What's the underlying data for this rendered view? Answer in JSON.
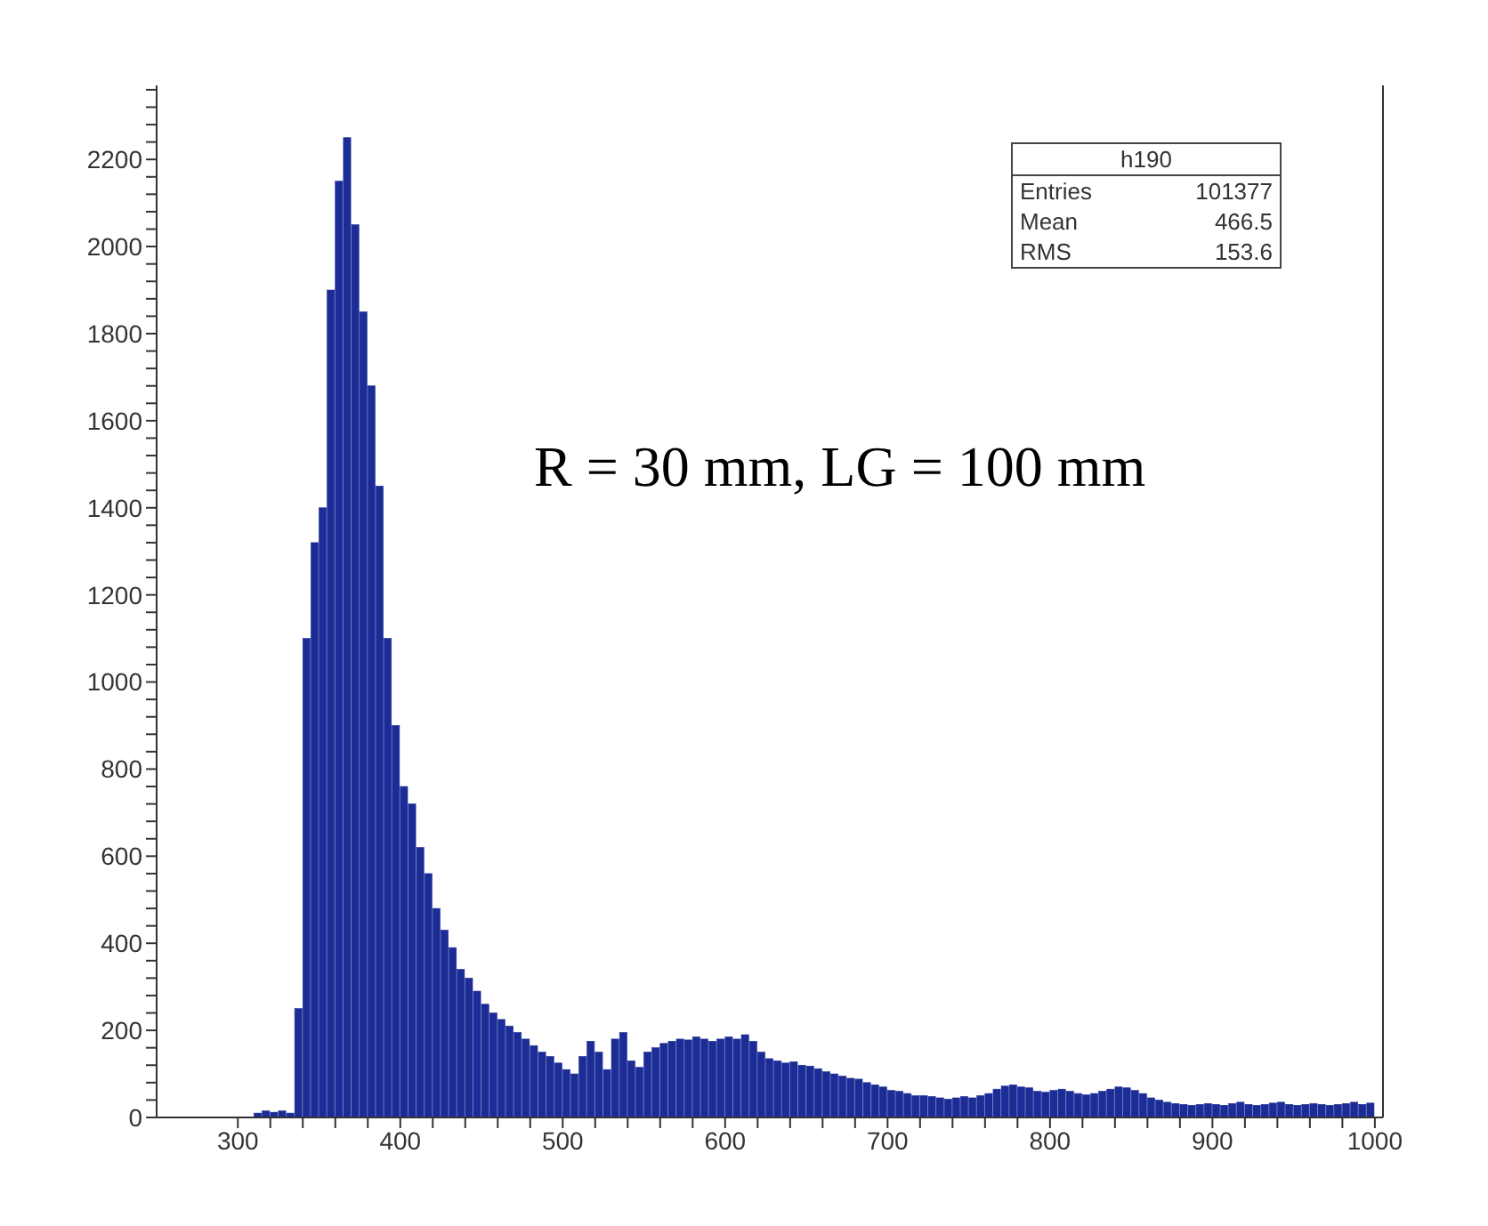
{
  "chart_data": {
    "type": "histogram",
    "bins": [
      310,
      315,
      320,
      325,
      330,
      335,
      340,
      345,
      350,
      355,
      360,
      365,
      370,
      375,
      380,
      385,
      390,
      395,
      400,
      405,
      410,
      415,
      420,
      425,
      430,
      435,
      440,
      445,
      450,
      455,
      460,
      465,
      470,
      475,
      480,
      485,
      490,
      495,
      500,
      505,
      510,
      515,
      520,
      525,
      530,
      535,
      540,
      545,
      550,
      555,
      560,
      565,
      570,
      575,
      580,
      585,
      590,
      595,
      600,
      605,
      610,
      615,
      620,
      625,
      630,
      635,
      640,
      645,
      650,
      655,
      660,
      665,
      670,
      675,
      680,
      685,
      690,
      695,
      700,
      705,
      710,
      715,
      720,
      725,
      730,
      735,
      740,
      745,
      750,
      755,
      760,
      765,
      770,
      775,
      780,
      785,
      790,
      795,
      800,
      805,
      810,
      815,
      820,
      825,
      830,
      835,
      840,
      845,
      850,
      855,
      860,
      865,
      870,
      875,
      880,
      885,
      890,
      895,
      900,
      905,
      910,
      915,
      920,
      925,
      930,
      935,
      940,
      945,
      950,
      955,
      960,
      965,
      970,
      975,
      980,
      985,
      990,
      995,
      1000
    ],
    "values": [
      10,
      15,
      12,
      15,
      10,
      250,
      1100,
      1320,
      1400,
      1900,
      2150,
      2250,
      2050,
      1850,
      1680,
      1450,
      1100,
      900,
      760,
      720,
      620,
      560,
      480,
      430,
      390,
      340,
      320,
      290,
      260,
      240,
      225,
      210,
      195,
      180,
      165,
      150,
      140,
      125,
      110,
      100,
      140,
      175,
      150,
      110,
      180,
      195,
      130,
      115,
      150,
      160,
      170,
      175,
      180,
      178,
      185,
      180,
      175,
      180,
      185,
      180,
      190,
      175,
      150,
      135,
      130,
      125,
      128,
      120,
      118,
      112,
      105,
      100,
      95,
      90,
      88,
      80,
      75,
      70,
      62,
      60,
      55,
      50,
      50,
      48,
      45,
      42,
      45,
      48,
      45,
      50,
      55,
      65,
      72,
      75,
      70,
      68,
      60,
      58,
      62,
      65,
      60,
      55,
      52,
      55,
      60,
      65,
      70,
      68,
      62,
      55,
      45,
      40,
      35,
      32,
      30,
      28,
      30,
      32,
      30,
      28,
      32,
      35,
      30,
      28,
      30,
      33,
      35,
      30,
      28,
      30,
      32,
      30,
      28,
      30,
      32,
      35,
      30,
      33
    ],
    "color": "#1c2c96",
    "xlim": [
      250,
      1005
    ],
    "xticks": [
      300,
      {
        "value": 320,
        "label": null
      },
      {
        "value": 340,
        "label": null
      },
      {
        "value": 360,
        "label": null
      },
      {
        "value": 380,
        "label": null
      },
      400,
      {
        "value": 420,
        "label": null
      },
      {
        "value": 440,
        "label": null
      },
      {
        "value": 460,
        "label": null
      },
      {
        "value": 480,
        "label": null
      },
      500,
      {
        "value": 520,
        "label": null
      },
      {
        "value": 540,
        "label": null
      },
      {
        "value": 560,
        "label": null
      },
      {
        "value": 580,
        "label": null
      },
      600,
      {
        "value": 620,
        "label": null
      },
      {
        "value": 640,
        "label": null
      },
      {
        "value": 660,
        "label": null
      },
      {
        "value": 680,
        "label": null
      },
      700,
      {
        "value": 720,
        "label": null
      },
      {
        "value": 740,
        "label": null
      },
      {
        "value": 760,
        "label": null
      },
      {
        "value": 780,
        "label": null
      },
      800,
      {
        "value": 820,
        "label": null
      },
      {
        "value": 840,
        "label": null
      },
      {
        "value": 860,
        "label": null
      },
      {
        "value": 880,
        "label": null
      },
      900,
      {
        "value": 920,
        "label": null
      },
      {
        "value": 940,
        "label": null
      },
      {
        "value": 960,
        "label": null
      },
      {
        "value": 980,
        "label": null
      },
      1000
    ],
    "ylim": [
      0,
      2370
    ],
    "yticks": [
      0,
      {
        "value": 40,
        "label": null
      },
      {
        "value": 80,
        "label": null
      },
      {
        "value": 120,
        "label": null
      },
      {
        "value": 160,
        "label": null
      },
      200,
      {
        "value": 240,
        "label": null
      },
      {
        "value": 280,
        "label": null
      },
      {
        "value": 320,
        "label": null
      },
      {
        "value": 360,
        "label": null
      },
      400,
      {
        "value": 440,
        "label": null
      },
      {
        "value": 480,
        "label": null
      },
      {
        "value": 520,
        "label": null
      },
      {
        "value": 560,
        "label": null
      },
      600,
      {
        "value": 640,
        "label": null
      },
      {
        "value": 680,
        "label": null
      },
      {
        "value": 720,
        "label": null
      },
      {
        "value": 760,
        "label": null
      },
      800,
      {
        "value": 840,
        "label": null
      },
      {
        "value": 880,
        "label": null
      },
      {
        "value": 920,
        "label": null
      },
      {
        "value": 960,
        "label": null
      },
      1000,
      {
        "value": 1040,
        "label": null
      },
      {
        "value": 1080,
        "label": null
      },
      {
        "value": 1120,
        "label": null
      },
      {
        "value": 1160,
        "label": null
      },
      1200,
      {
        "value": 1240,
        "label": null
      },
      {
        "value": 1280,
        "label": null
      },
      {
        "value": 1320,
        "label": null
      },
      {
        "value": 1360,
        "label": null
      },
      1400,
      {
        "value": 1440,
        "label": null
      },
      {
        "value": 1480,
        "label": null
      },
      {
        "value": 1520,
        "label": null
      },
      {
        "value": 1560,
        "label": null
      },
      1600,
      {
        "value": 1640,
        "label": null
      },
      {
        "value": 1680,
        "label": null
      },
      {
        "value": 1720,
        "label": null
      },
      {
        "value": 1760,
        "label": null
      },
      1800,
      {
        "value": 1840,
        "label": null
      },
      {
        "value": 1880,
        "label": null
      },
      {
        "value": 1920,
        "label": null
      },
      {
        "value": 1960,
        "label": null
      },
      2000,
      {
        "value": 2040,
        "label": null
      },
      {
        "value": 2080,
        "label": null
      },
      {
        "value": 2120,
        "label": null
      },
      {
        "value": 2160,
        "label": null
      },
      2200,
      {
        "value": 2240,
        "label": null
      },
      {
        "value": 2280,
        "label": null
      },
      {
        "value": 2320,
        "label": null
      },
      {
        "value": 2360,
        "label": null
      }
    ],
    "grid": false,
    "legend": false,
    "annotations": [
      "h190",
      "Entries 101377",
      "Mean 466.5",
      "RMS 153.6",
      "R = 30 mm, LG = 100 mm"
    ]
  }
}
